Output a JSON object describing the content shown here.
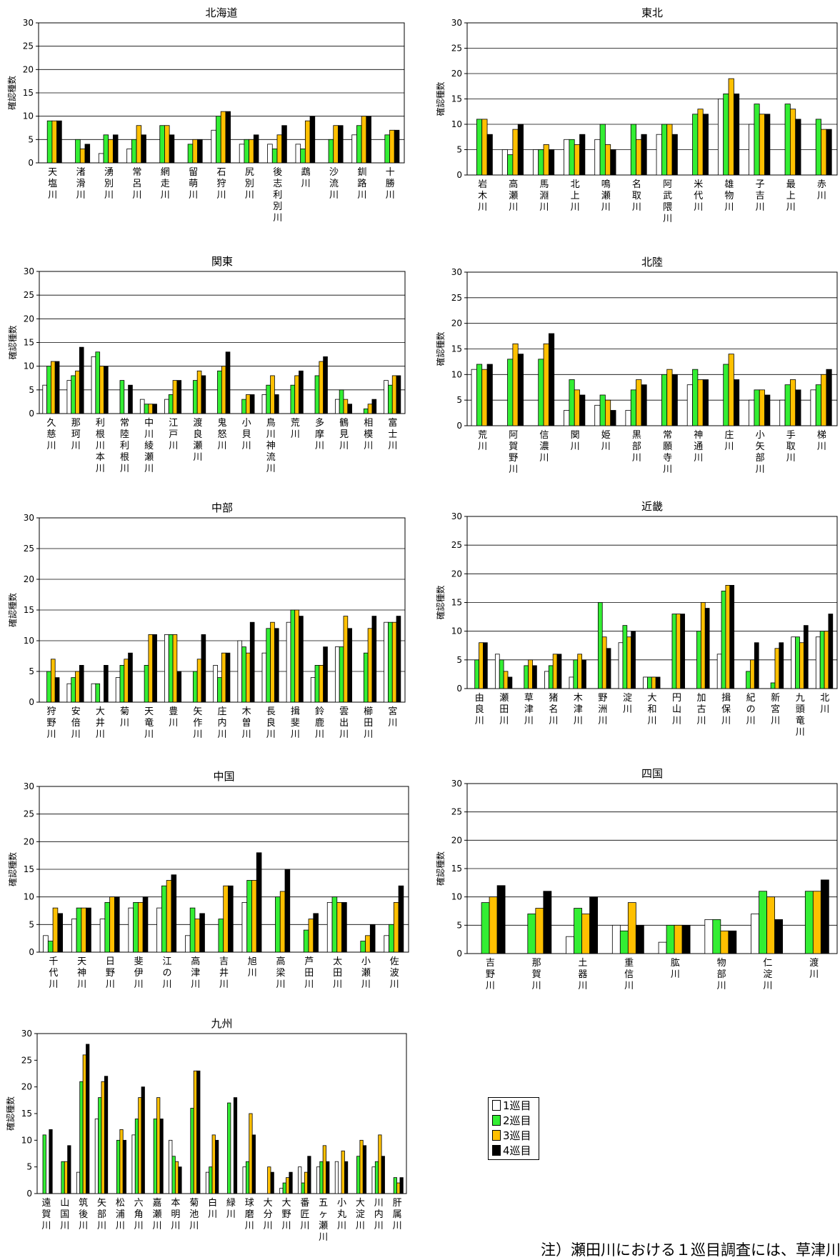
{
  "legend": {
    "items": [
      "1巡目",
      "2巡目",
      "3巡目",
      "4巡目"
    ],
    "colors": [
      "#ffffff",
      "#33ee33",
      "#ffc000",
      "#000000"
    ]
  },
  "note": "注）瀬田川における１巡目調査には、草津川",
  "chart_data": [
    {
      "type": "bar",
      "title": "北海道",
      "ylabel": "確認種数",
      "ylim": [
        0,
        30
      ],
      "yticks": [
        0,
        5,
        10,
        15,
        20,
        25,
        30
      ],
      "grid": true,
      "categories": [
        "天塩川",
        "渚滑川",
        "湧別川",
        "常呂川",
        "網走川",
        "留萌川",
        "石狩川",
        "尻別川",
        "後志利別川",
        "鵡川",
        "沙流川",
        "釧路川",
        "十勝川"
      ],
      "series": [
        {
          "name": "1巡目",
          "values": [
            0,
            0,
            2,
            3,
            0,
            0,
            7,
            4,
            4,
            4,
            0,
            6,
            0
          ]
        },
        {
          "name": "2巡目",
          "values": [
            9,
            5,
            6,
            5,
            8,
            4,
            10,
            5,
            3,
            3,
            5,
            8,
            6
          ]
        },
        {
          "name": "3巡目",
          "values": [
            9,
            3,
            5,
            8,
            8,
            5,
            11,
            5,
            6,
            9,
            8,
            10,
            7
          ]
        },
        {
          "name": "4巡目",
          "values": [
            9,
            4,
            6,
            6,
            6,
            5,
            11,
            6,
            8,
            10,
            8,
            10,
            7
          ]
        }
      ]
    },
    {
      "type": "bar",
      "title": "東北",
      "ylabel": "確認種数",
      "ylim": [
        0,
        30
      ],
      "yticks": [
        0,
        5,
        10,
        15,
        20,
        25,
        30
      ],
      "grid": true,
      "categories": [
        "岩木川",
        "高瀬川",
        "馬淵川",
        "北上川",
        "鳴瀬川",
        "名取川",
        "阿武隈川",
        "米代川",
        "雄物川",
        "子吉川",
        "最上川",
        "赤川"
      ],
      "series": [
        {
          "name": "1巡目",
          "values": [
            0,
            5,
            5,
            7,
            7,
            0,
            8,
            0,
            15,
            10,
            0,
            0
          ]
        },
        {
          "name": "2巡目",
          "values": [
            11,
            4,
            5,
            7,
            10,
            10,
            10,
            12,
            16,
            14,
            14,
            11
          ]
        },
        {
          "name": "3巡目",
          "values": [
            11,
            9,
            6,
            6,
            6,
            7,
            10,
            13,
            19,
            12,
            13,
            9
          ]
        },
        {
          "name": "4巡目",
          "values": [
            8,
            10,
            5,
            8,
            5,
            8,
            8,
            12,
            16,
            12,
            11,
            9
          ]
        }
      ]
    },
    {
      "type": "bar",
      "title": "関東",
      "ylabel": "確認種数",
      "ylim": [
        0,
        30
      ],
      "yticks": [
        0,
        5,
        10,
        15,
        20,
        25,
        30
      ],
      "grid": true,
      "categories": [
        "久慈川",
        "那珂川",
        "利根川本川",
        "常陸利根川",
        "中川綾瀬川",
        "江戸川",
        "渡良瀬川",
        "鬼怒川",
        "小貝川",
        "鳥川神流川",
        "荒川",
        "多摩川",
        "鶴見川",
        "相模川",
        "富士川"
      ],
      "series": [
        {
          "name": "1巡目",
          "values": [
            6,
            7,
            12,
            0,
            3,
            3,
            0,
            0,
            0,
            4,
            0,
            0,
            3,
            0,
            7
          ]
        },
        {
          "name": "2巡目",
          "values": [
            10,
            8,
            13,
            7,
            2,
            4,
            7,
            9,
            3,
            6,
            6,
            8,
            5,
            1,
            6
          ]
        },
        {
          "name": "3巡目",
          "values": [
            11,
            9,
            10,
            0,
            2,
            7,
            9,
            10,
            4,
            8,
            8,
            11,
            3,
            2,
            8
          ]
        },
        {
          "name": "4巡目",
          "values": [
            11,
            14,
            10,
            6,
            2,
            7,
            8,
            13,
            4,
            4,
            9,
            12,
            2,
            3,
            8
          ]
        }
      ]
    },
    {
      "type": "bar",
      "title": "北陸",
      "ylabel": "確認種数",
      "ylim": [
        0,
        30
      ],
      "yticks": [
        0,
        5,
        10,
        15,
        20,
        25,
        30
      ],
      "grid": true,
      "categories": [
        "荒川",
        "阿賀野川",
        "信濃川",
        "関川",
        "姫川",
        "黒部川",
        "常願寺川",
        "神通川",
        "庄川",
        "小矢部川",
        "手取川",
        "梯川"
      ],
      "series": [
        {
          "name": "1巡目",
          "values": [
            11,
            0,
            0,
            3,
            4,
            3,
            0,
            8,
            0,
            5,
            5,
            7
          ]
        },
        {
          "name": "2巡目",
          "values": [
            12,
            13,
            13,
            9,
            6,
            7,
            10,
            11,
            12,
            7,
            8,
            8
          ]
        },
        {
          "name": "3巡目",
          "values": [
            11,
            16,
            16,
            7,
            5,
            9,
            11,
            9,
            14,
            7,
            9,
            10
          ]
        },
        {
          "name": "4巡目",
          "values": [
            12,
            14,
            18,
            6,
            3,
            8,
            10,
            9,
            9,
            6,
            7,
            11
          ]
        }
      ]
    },
    {
      "type": "bar",
      "title": "中部",
      "ylabel": "確認種数",
      "ylim": [
        0,
        30
      ],
      "yticks": [
        0,
        5,
        10,
        15,
        20,
        25,
        30
      ],
      "grid": true,
      "categories": [
        "狩野川",
        "安倍川",
        "大井川",
        "菊川",
        "天竜川",
        "豊川",
        "矢作川",
        "庄内川",
        "木曽川",
        "長良川",
        "揖斐川",
        "鈴鹿川",
        "雲出川",
        "櫛田川",
        "宮川"
      ],
      "series": [
        {
          "name": "1巡目",
          "values": [
            0,
            3,
            3,
            4,
            0,
            11,
            0,
            6,
            10,
            8,
            13,
            4,
            9,
            0,
            13
          ]
        },
        {
          "name": "2巡目",
          "values": [
            5,
            4,
            3,
            6,
            6,
            11,
            5,
            4,
            9,
            12,
            15,
            6,
            9,
            8,
            13
          ]
        },
        {
          "name": "3巡目",
          "values": [
            7,
            5,
            0,
            7,
            11,
            11,
            7,
            8,
            8,
            13,
            15,
            6,
            14,
            12,
            13
          ]
        },
        {
          "name": "4巡目",
          "values": [
            4,
            6,
            6,
            8,
            11,
            5,
            11,
            8,
            13,
            12,
            14,
            9,
            12,
            14,
            14
          ]
        }
      ]
    },
    {
      "type": "bar",
      "title": "近畿",
      "ylabel": "確認種数",
      "ylim": [
        0,
        30
      ],
      "yticks": [
        0,
        5,
        10,
        15,
        20,
        25,
        30
      ],
      "grid": true,
      "categories": [
        "由良川",
        "瀬田川",
        "草津川",
        "猪名川",
        "木津川",
        "野洲川",
        "淀川",
        "大和川",
        "円山川",
        "加古川",
        "揖保川",
        "紀の川",
        "新宮川",
        "九頭竜川",
        "北川"
      ],
      "series": [
        {
          "name": "1巡目",
          "values": [
            0,
            6,
            0,
            3,
            2,
            0,
            8,
            2,
            0,
            0,
            6,
            0,
            0,
            9,
            9
          ]
        },
        {
          "name": "2巡目",
          "values": [
            5,
            5,
            4,
            4,
            5,
            15,
            11,
            2,
            13,
            10,
            17,
            3,
            1,
            9,
            10
          ]
        },
        {
          "name": "3巡目",
          "values": [
            8,
            3,
            5,
            6,
            6,
            9,
            9,
            2,
            13,
            15,
            18,
            5,
            7,
            8,
            10
          ]
        },
        {
          "name": "4巡目",
          "values": [
            8,
            2,
            4,
            6,
            5,
            7,
            10,
            2,
            13,
            14,
            18,
            8,
            8,
            11,
            13
          ]
        }
      ]
    },
    {
      "type": "bar",
      "title": "中国",
      "ylabel": "確認種数",
      "ylim": [
        0,
        30
      ],
      "yticks": [
        0,
        5,
        10,
        15,
        20,
        25,
        30
      ],
      "grid": true,
      "categories": [
        "千代川",
        "天神川",
        "日野川",
        "斐伊川",
        "江の川",
        "高津川",
        "吉井川",
        "旭川",
        "高梁川",
        "芦田川",
        "太田川",
        "小瀬川",
        "佐波川"
      ],
      "series": [
        {
          "name": "1巡目",
          "values": [
            3,
            6,
            6,
            8,
            8,
            3,
            0,
            9,
            0,
            0,
            9,
            0,
            3
          ]
        },
        {
          "name": "2巡目",
          "values": [
            2,
            8,
            9,
            9,
            12,
            8,
            6,
            13,
            10,
            4,
            10,
            2,
            5
          ]
        },
        {
          "name": "3巡目",
          "values": [
            8,
            8,
            10,
            9,
            13,
            6,
            12,
            13,
            11,
            6,
            9,
            3,
            9
          ]
        },
        {
          "name": "4巡目",
          "values": [
            7,
            8,
            10,
            10,
            14,
            7,
            12,
            18,
            15,
            7,
            9,
            5,
            12
          ]
        }
      ]
    },
    {
      "type": "bar",
      "title": "四国",
      "ylabel": "確認種数",
      "ylim": [
        0,
        30
      ],
      "yticks": [
        0,
        5,
        10,
        15,
        20,
        25,
        30
      ],
      "grid": true,
      "categories": [
        "吉野川",
        "那賀川",
        "土器川",
        "重信川",
        "肱川",
        "物部川",
        "仁淀川",
        "渡川"
      ],
      "series": [
        {
          "name": "1巡目",
          "values": [
            0,
            0,
            3,
            5,
            2,
            6,
            7,
            0
          ]
        },
        {
          "name": "2巡目",
          "values": [
            9,
            7,
            8,
            4,
            5,
            6,
            11,
            11
          ]
        },
        {
          "name": "3巡目",
          "values": [
            10,
            8,
            7,
            9,
            5,
            4,
            10,
            11
          ]
        },
        {
          "name": "4巡目",
          "values": [
            12,
            11,
            10,
            5,
            5,
            4,
            6,
            13
          ]
        }
      ]
    },
    {
      "type": "bar",
      "title": "九州",
      "ylabel": "確認種数",
      "ylim": [
        0,
        30
      ],
      "yticks": [
        0,
        5,
        10,
        15,
        20,
        25,
        30
      ],
      "grid": false,
      "categories": [
        "遠賀川",
        "山国川",
        "筑後川",
        "矢部川",
        "松浦川",
        "六角川",
        "嘉瀬川",
        "本明川",
        "菊池川",
        "白川",
        "緑川",
        "球磨川",
        "大分川",
        "大野川",
        "番匠川",
        "五ヶ瀬川",
        "小丸川",
        "大淀川",
        "川内川",
        "肝属川"
      ],
      "series": [
        {
          "name": "1巡目",
          "values": [
            0,
            0,
            4,
            14,
            0,
            11,
            0,
            10,
            0,
            4,
            0,
            5,
            0,
            1,
            5,
            5,
            6,
            0,
            5,
            0
          ]
        },
        {
          "name": "2巡目",
          "values": [
            11,
            6,
            21,
            18,
            10,
            14,
            14,
            7,
            16,
            5,
            17,
            6,
            0,
            2,
            2,
            6,
            0,
            7,
            6,
            3
          ]
        },
        {
          "name": "3巡目",
          "values": [
            0,
            6,
            26,
            21,
            12,
            18,
            18,
            6,
            23,
            11,
            0,
            15,
            5,
            3,
            4,
            9,
            8,
            10,
            11,
            2
          ]
        },
        {
          "name": "4巡目",
          "values": [
            12,
            9,
            28,
            22,
            10,
            20,
            14,
            5,
            23,
            10,
            18,
            11,
            4,
            4,
            7,
            6,
            6,
            9,
            7,
            3
          ]
        }
      ]
    }
  ]
}
